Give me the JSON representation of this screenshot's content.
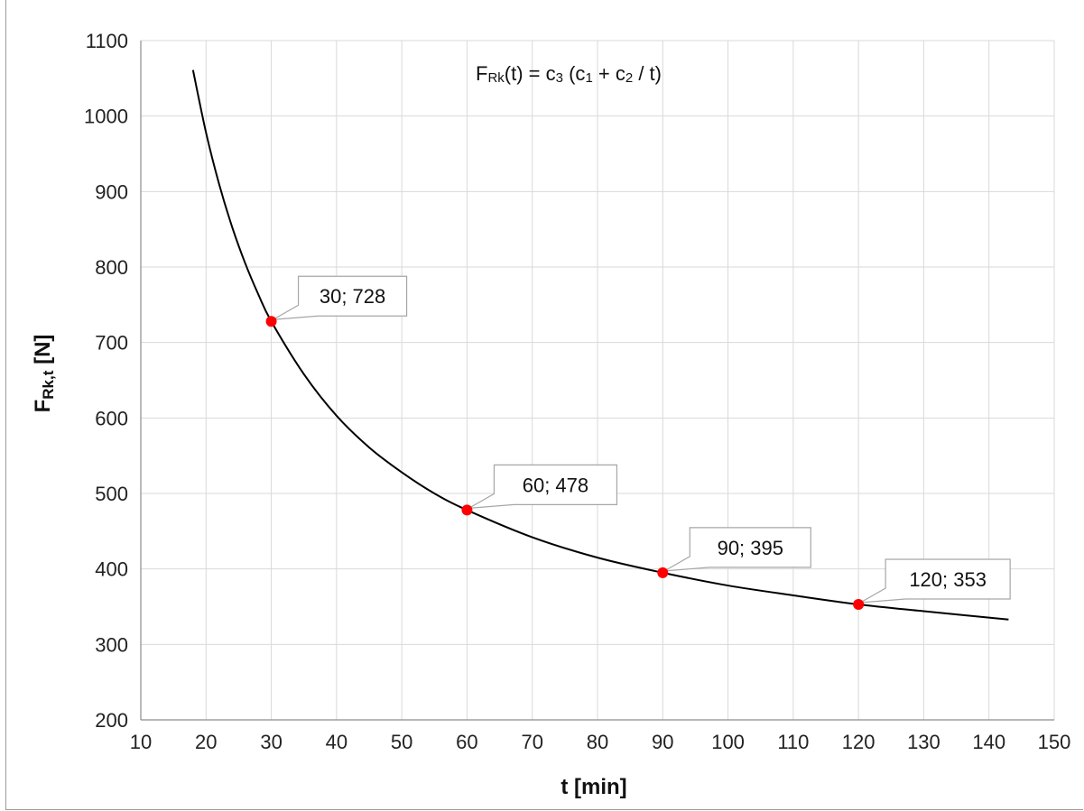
{
  "chart_data": {
    "type": "line",
    "formula": {
      "F": "F",
      "Rk": "Rk",
      "t1": "(t) = c",
      "c3": "3",
      "mid": " (c",
      "c1": "1",
      "plus": " + c",
      "c2": "2",
      "end": " / t)"
    },
    "xlabel": "t [min]",
    "ylabel": {
      "main": "F",
      "sub": "Rk,t",
      "unit": " [N]"
    },
    "xlim": [
      10,
      150
    ],
    "ylim": [
      200,
      1100
    ],
    "xticks": [
      10,
      20,
      30,
      40,
      50,
      60,
      70,
      80,
      90,
      100,
      110,
      120,
      130,
      140,
      150
    ],
    "yticks": [
      200,
      300,
      400,
      500,
      600,
      700,
      800,
      900,
      1000,
      1100
    ],
    "grid": true,
    "curve": {
      "x": [
        18,
        20,
        22,
        24,
        26,
        28,
        30,
        35,
        40,
        45,
        50,
        55,
        60,
        70,
        80,
        90,
        100,
        110,
        120,
        130,
        143
      ],
      "y": [
        1061,
        978,
        910,
        853,
        805,
        764,
        728,
        658,
        603,
        561,
        528,
        500,
        478,
        442,
        415,
        395,
        378,
        365,
        353,
        344,
        333
      ]
    },
    "points": [
      {
        "x": 30,
        "y": 728,
        "label": "30; 728"
      },
      {
        "x": 60,
        "y": 478,
        "label": "60; 478"
      },
      {
        "x": 90,
        "y": 395,
        "label": "90; 395"
      },
      {
        "x": 120,
        "y": 353,
        "label": "120; 353"
      }
    ],
    "colors": {
      "curve": "#000000",
      "points": "#ff0000",
      "grid": "#d9d9d9",
      "callout_border": "#a6a6a6"
    }
  }
}
